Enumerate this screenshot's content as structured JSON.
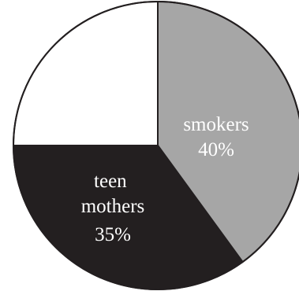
{
  "chart_data": {
    "type": "pie",
    "title": "",
    "slices": [
      {
        "label": "smokers",
        "value": 40,
        "value_label": "40%",
        "color": "#a6a6a6",
        "label_color": "#ffffff"
      },
      {
        "label": "teen mothers",
        "value": 35,
        "value_label": "35%",
        "color": "#231f20",
        "label_color": "#ffffff"
      },
      {
        "label": "",
        "value": 25,
        "value_label": "",
        "color": "#ffffff",
        "label_color": "#231f20"
      }
    ],
    "start_angle": "12 o'clock",
    "direction": "clockwise",
    "outline_color": "#231f20"
  }
}
